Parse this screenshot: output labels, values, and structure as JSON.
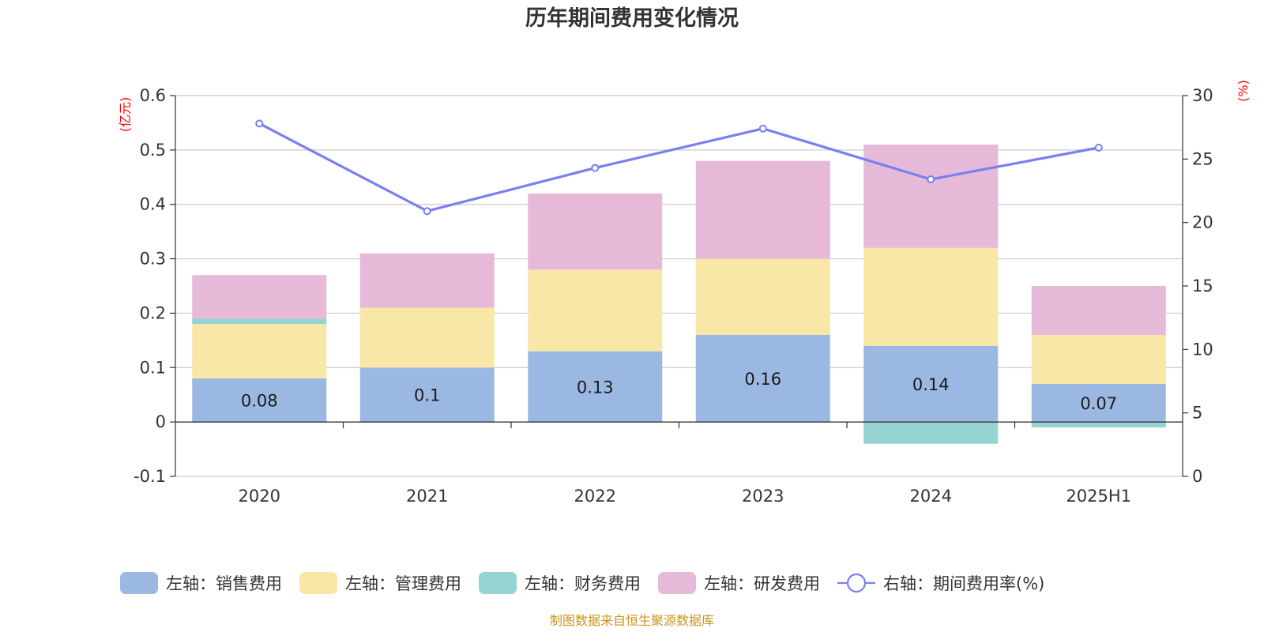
{
  "chart_data": {
    "type": "bar",
    "title": "历年期间费用变化情况",
    "categories": [
      "2020",
      "2021",
      "2022",
      "2023",
      "2024",
      "2025H1"
    ],
    "left_axis": {
      "unit": "(亿元)",
      "ylim": [
        -0.1,
        0.6
      ],
      "ticks": [
        -0.1,
        0,
        0.1,
        0.2,
        0.3,
        0.4,
        0.5,
        0.6
      ],
      "tick_labels": [
        "-0.1",
        "0",
        "0.1",
        "0.2",
        "0.3",
        "0.4",
        "0.5",
        "0.6"
      ]
    },
    "right_axis": {
      "unit": "(%)",
      "ylim": [
        0,
        30
      ],
      "ticks": [
        0,
        5,
        10,
        15,
        20,
        25,
        30
      ],
      "tick_labels": [
        "0",
        "5",
        "10",
        "15",
        "20",
        "25",
        "30"
      ]
    },
    "series": [
      {
        "name": "左轴：销售费用",
        "type": "bar",
        "axis": "left",
        "color": "#9bb8e2",
        "values": [
          0.08,
          0.1,
          0.13,
          0.16,
          0.14,
          0.07
        ],
        "labels": [
          "0.08",
          "0.1",
          "0.13",
          "0.16",
          "0.14",
          "0.07"
        ]
      },
      {
        "name": "左轴：管理费用",
        "type": "bar",
        "axis": "left",
        "color": "#f8e7a6",
        "values": [
          0.1,
          0.11,
          0.15,
          0.14,
          0.18,
          0.09
        ]
      },
      {
        "name": "左轴：财务费用",
        "type": "bar",
        "axis": "left",
        "color": "#96d4d3",
        "values": [
          0.01,
          0,
          0,
          0,
          -0.04,
          -0.01
        ]
      },
      {
        "name": "左轴：研发费用",
        "type": "bar",
        "axis": "left",
        "color": "#e7b9d9",
        "values": [
          0.08,
          0.1,
          0.14,
          0.18,
          0.19,
          0.09
        ]
      },
      {
        "name": "右轴：期间费用率(%)",
        "type": "line",
        "axis": "right",
        "color": "#7a7ff0",
        "values": [
          27.8,
          20.9,
          24.3,
          27.4,
          23.4,
          25.9
        ]
      }
    ],
    "grid": true,
    "legend_position": "bottom"
  },
  "source_note": "制图数据来自恒生聚源数据库"
}
